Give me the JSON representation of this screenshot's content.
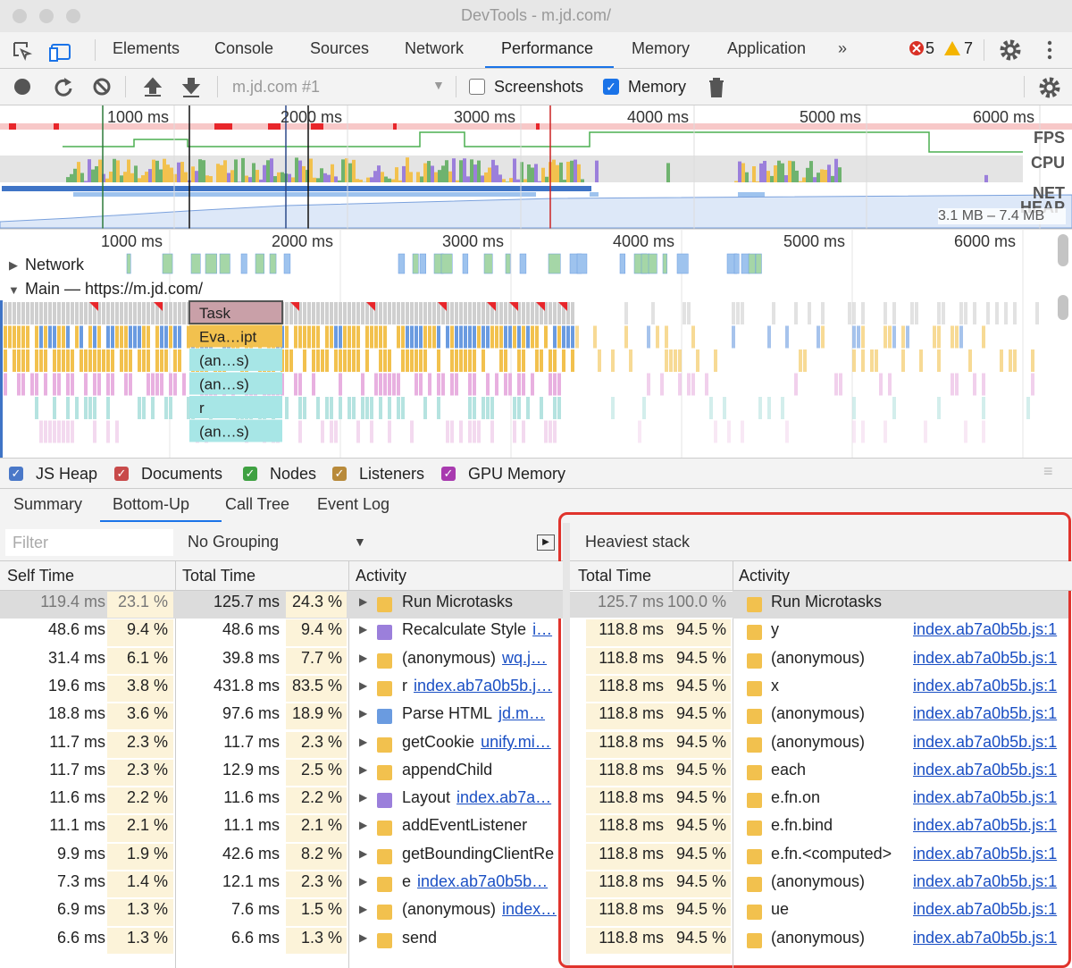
{
  "window_title": "DevTools - m.jd.com/",
  "tabs": [
    "Elements",
    "Console",
    "Sources",
    "Network",
    "Performance",
    "Memory",
    "Application"
  ],
  "selected_tab": 4,
  "errors": "5",
  "warnings": "7",
  "toolbar": {
    "target": "m.jd.com #1",
    "screenshots": "Screenshots",
    "memory": "Memory"
  },
  "overview": {
    "ticks": [
      "1000 ms",
      "2000 ms",
      "3000 ms",
      "4000 ms",
      "5000 ms",
      "6000 ms"
    ],
    "tracks": [
      "FPS",
      "CPU",
      "NET",
      "HEAP"
    ],
    "heap_range": "3.1 MB – 7.4 MB"
  },
  "timeline": {
    "ticks": [
      "1000 ms",
      "2000 ms",
      "3000 ms",
      "4000 ms",
      "5000 ms",
      "6000 ms"
    ],
    "network": "Network",
    "main": "Main — https://m.jd.com/",
    "flame": [
      "Task",
      "Eva…ipt",
      "(an…s)",
      "(an…s)",
      "r",
      "(an…s)"
    ]
  },
  "counters": [
    {
      "label": "JS Heap",
      "color": "#4a78c8"
    },
    {
      "label": "Documents",
      "color": "#c84a4a"
    },
    {
      "label": "Nodes",
      "color": "#3fa142"
    },
    {
      "label": "Listeners",
      "color": "#b88a3a"
    },
    {
      "label": "GPU Memory",
      "color": "#a83aaf"
    }
  ],
  "bottom_tabs": [
    "Summary",
    "Bottom-Up",
    "Call Tree",
    "Event Log"
  ],
  "selected_bottom_tab": 1,
  "filter": "Filter",
  "grouping": "No Grouping",
  "bottom_up": {
    "columns": [
      "Self Time",
      "Total Time",
      "Activity"
    ],
    "rows": [
      {
        "self": "119.4 ms",
        "self_pct": "23.1 %",
        "total": "125.7 ms",
        "total_pct": "24.3 %",
        "activity": "Run Microtasks",
        "color": "#f2c14e"
      },
      {
        "self": "48.6 ms",
        "self_pct": "9.4 %",
        "total": "48.6 ms",
        "total_pct": "9.4 %",
        "activity": "Recalculate Style",
        "link": "i…",
        "color": "#9b7fdb"
      },
      {
        "self": "31.4 ms",
        "self_pct": "6.1 %",
        "total": "39.8 ms",
        "total_pct": "7.7 %",
        "activity": "(anonymous)",
        "link": "wq.j…",
        "color": "#f2c14e"
      },
      {
        "self": "19.6 ms",
        "self_pct": "3.8 %",
        "total": "431.8 ms",
        "total_pct": "83.5 %",
        "activity": "r",
        "link": "index.ab7a0b5b.j…",
        "color": "#f2c14e"
      },
      {
        "self": "18.8 ms",
        "self_pct": "3.6 %",
        "total": "97.6 ms",
        "total_pct": "18.9 %",
        "activity": "Parse HTML",
        "link": "jd.m…",
        "color": "#6a9be0"
      },
      {
        "self": "11.7 ms",
        "self_pct": "2.3 %",
        "total": "11.7 ms",
        "total_pct": "2.3 %",
        "activity": "getCookie",
        "link": "unify.mi…",
        "color": "#f2c14e"
      },
      {
        "self": "11.7 ms",
        "self_pct": "2.3 %",
        "total": "12.9 ms",
        "total_pct": "2.5 %",
        "activity": "appendChild",
        "color": "#f2c14e"
      },
      {
        "self": "11.6 ms",
        "self_pct": "2.2 %",
        "total": "11.6 ms",
        "total_pct": "2.2 %",
        "activity": "Layout",
        "link": "index.ab7a…",
        "color": "#9b7fdb"
      },
      {
        "self": "11.1 ms",
        "self_pct": "2.1 %",
        "total": "11.1 ms",
        "total_pct": "2.1 %",
        "activity": "addEventListener",
        "color": "#f2c14e"
      },
      {
        "self": "9.9 ms",
        "self_pct": "1.9 %",
        "total": "42.6 ms",
        "total_pct": "8.2 %",
        "activity": "getBoundingClientRe",
        "color": "#f2c14e"
      },
      {
        "self": "7.3 ms",
        "self_pct": "1.4 %",
        "total": "12.1 ms",
        "total_pct": "2.3 %",
        "activity": "e",
        "link": "index.ab7a0b5b…",
        "color": "#f2c14e"
      },
      {
        "self": "6.9 ms",
        "self_pct": "1.3 %",
        "total": "7.6 ms",
        "total_pct": "1.5 %",
        "activity": "(anonymous)",
        "link": "index…",
        "color": "#f2c14e"
      },
      {
        "self": "6.6 ms",
        "self_pct": "1.3 %",
        "total": "6.6 ms",
        "total_pct": "1.3 %",
        "activity": "send",
        "color": "#f2c14e"
      }
    ]
  },
  "heaviest_stack": {
    "title": "Heaviest stack",
    "columns": [
      "Total Time",
      "Activity"
    ],
    "rows": [
      {
        "total": "125.7 ms",
        "total_pct": "100.0 %",
        "activity": "Run Microtasks"
      },
      {
        "total": "118.8 ms",
        "total_pct": "94.5 %",
        "activity": "y",
        "link": "index.ab7a0b5b.js:1"
      },
      {
        "total": "118.8 ms",
        "total_pct": "94.5 %",
        "activity": "(anonymous)",
        "link": "index.ab7a0b5b.js:1"
      },
      {
        "total": "118.8 ms",
        "total_pct": "94.5 %",
        "activity": "x",
        "link": "index.ab7a0b5b.js:1"
      },
      {
        "total": "118.8 ms",
        "total_pct": "94.5 %",
        "activity": "(anonymous)",
        "link": "index.ab7a0b5b.js:1"
      },
      {
        "total": "118.8 ms",
        "total_pct": "94.5 %",
        "activity": "(anonymous)",
        "link": "index.ab7a0b5b.js:1"
      },
      {
        "total": "118.8 ms",
        "total_pct": "94.5 %",
        "activity": "each",
        "link": "index.ab7a0b5b.js:1"
      },
      {
        "total": "118.8 ms",
        "total_pct": "94.5 %",
        "activity": "e.fn.on",
        "link": "index.ab7a0b5b.js:1"
      },
      {
        "total": "118.8 ms",
        "total_pct": "94.5 %",
        "activity": "e.fn.bind",
        "link": "index.ab7a0b5b.js:1"
      },
      {
        "total": "118.8 ms",
        "total_pct": "94.5 %",
        "activity": "e.fn.<computed>",
        "link": "index.ab7a0b5b.js:1"
      },
      {
        "total": "118.8 ms",
        "total_pct": "94.5 %",
        "activity": "(anonymous)",
        "link": "index.ab7a0b5b.js:1"
      },
      {
        "total": "118.8 ms",
        "total_pct": "94.5 %",
        "activity": "ue",
        "link": "index.ab7a0b5b.js:1"
      },
      {
        "total": "118.8 ms",
        "total_pct": "94.5 %",
        "activity": "(anonymous)",
        "link": "index.ab7a0b5b.js:1"
      }
    ]
  }
}
